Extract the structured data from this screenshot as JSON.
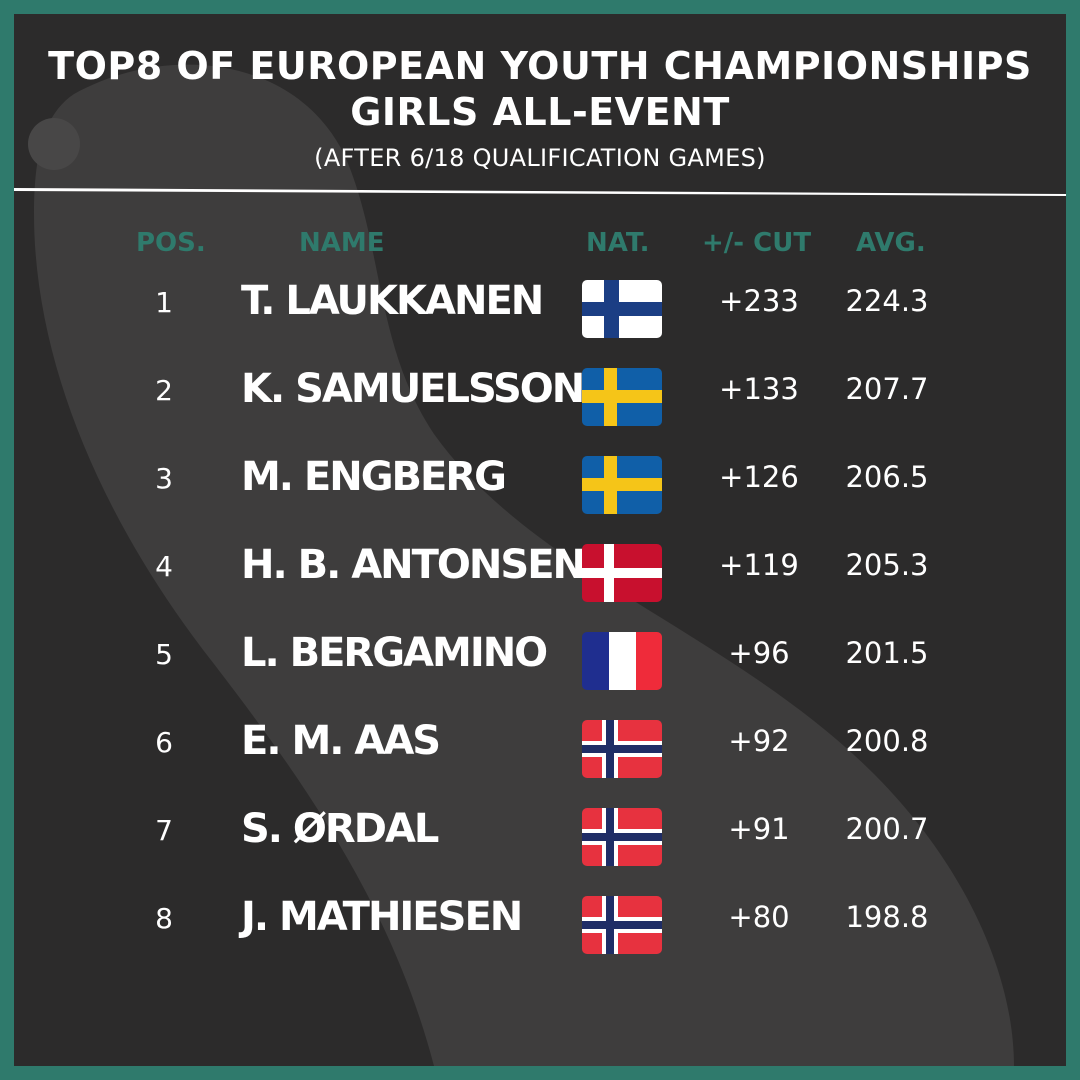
{
  "title": {
    "line1": "TOP8 OF EUROPEAN YOUTH CHAMPIONSHIPS",
    "line2": "GIRLS ALL-EVENT",
    "subtitle": "(AFTER 6/18 QUALIFICATION GAMES)"
  },
  "columns": {
    "pos": "POS.",
    "name": "NAME",
    "nat": "NAT.",
    "cut": "+/- CUT",
    "avg": "AVG."
  },
  "rows": [
    {
      "pos": "1",
      "name": "T. LAUKKANEN",
      "flag": "finland-flag-icon",
      "cut": "+233",
      "avg": "224.3"
    },
    {
      "pos": "2",
      "name": "K. SAMUELSSON",
      "flag": "sweden-flag-icon",
      "cut": "+133",
      "avg": "207.7"
    },
    {
      "pos": "3",
      "name": "M. ENGBERG",
      "flag": "sweden-flag-icon",
      "cut": "+126",
      "avg": "206.5"
    },
    {
      "pos": "4",
      "name": "H. B. ANTONSEN",
      "flag": "denmark-flag-icon",
      "cut": "+119",
      "avg": "205.3"
    },
    {
      "pos": "5",
      "name": "L. BERGAMINO",
      "flag": "france-flag-icon",
      "cut": "+96",
      "avg": "201.5"
    },
    {
      "pos": "6",
      "name": "E. M. AAS",
      "flag": "norway-flag-icon",
      "cut": "+92",
      "avg": "200.8"
    },
    {
      "pos": "7",
      "name": "S. ØRDAL",
      "flag": "norway-flag-icon",
      "cut": "+91",
      "avg": "200.7"
    },
    {
      "pos": "8",
      "name": "J. MATHIESEN",
      "flag": "norway-flag-icon",
      "cut": "+80",
      "avg": "198.8"
    }
  ],
  "colors": {
    "frame": "#2f7a6c",
    "background": "#2c2b2b",
    "header_text": "#2f7a6c",
    "text": "#ffffff",
    "finland_blue": "#1b3e84",
    "sweden_blue": "#105fa8",
    "sweden_yellow": "#f5c518",
    "denmark_red": "#c8102e",
    "france_blue": "#1f2e8f",
    "france_red": "#ef2b3a",
    "norway_red": "#e7323f",
    "norway_blue": "#1f2d66"
  }
}
